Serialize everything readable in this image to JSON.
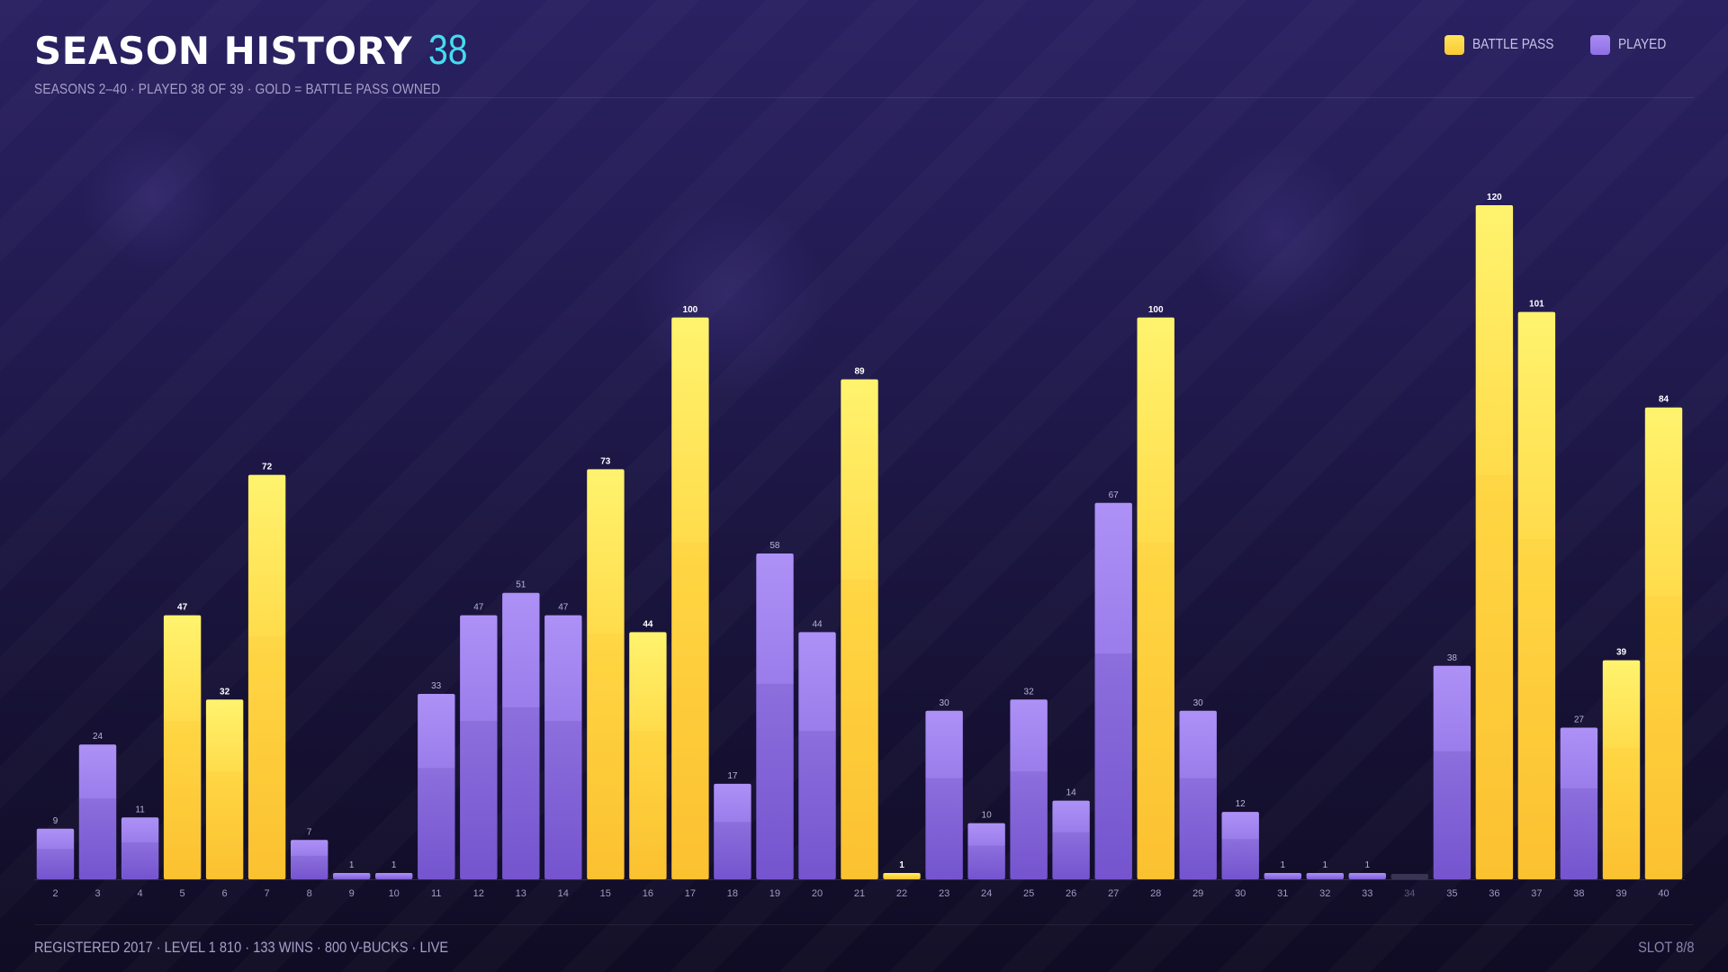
{
  "header": {
    "title": "SEASON HISTORY",
    "count": "38",
    "subtitle": "SEASONS 2–40  ·  PLAYED 38 OF 39  ·  GOLD = BATTLE PASS OWNED"
  },
  "legend": {
    "items": [
      {
        "label": "BATTLE PASS",
        "color": "#f9c934"
      },
      {
        "label": "PLAYED",
        "color": "#8f6fe6"
      }
    ]
  },
  "footer": {
    "left": "REGISTERED 2017  ·  LEVEL 1 810  ·  133 WINS  ·  800 V-BUCKS  ·  LIVE",
    "right": "SLOT 8/8"
  },
  "chart_data": {
    "type": "bar",
    "title": "SEASON HISTORY",
    "xlabel": "",
    "ylabel": "",
    "ylim": [
      0,
      120
    ],
    "grid": false,
    "legend_position": "top-right",
    "colors": {
      "battle_pass": "#f9c934",
      "played": "#8f6fe6",
      "not_played": "#3a3454"
    },
    "categories": [
      "2",
      "3",
      "4",
      "5",
      "6",
      "7",
      "8",
      "9",
      "10",
      "11",
      "12",
      "13",
      "14",
      "15",
      "16",
      "17",
      "18",
      "19",
      "20",
      "21",
      "22",
      "23",
      "24",
      "25",
      "26",
      "27",
      "28",
      "29",
      "30",
      "31",
      "32",
      "33",
      "34",
      "35",
      "36",
      "37",
      "38",
      "39",
      "40"
    ],
    "values": [
      9,
      24,
      11,
      47,
      32,
      72,
      7,
      1,
      1,
      33,
      47,
      51,
      47,
      73,
      44,
      100,
      17,
      58,
      44,
      89,
      1,
      30,
      10,
      32,
      14,
      67,
      100,
      30,
      12,
      1,
      1,
      1,
      0,
      38,
      120,
      101,
      27,
      39,
      84
    ],
    "battle_pass": [
      false,
      false,
      false,
      true,
      true,
      true,
      false,
      false,
      false,
      false,
      false,
      false,
      false,
      true,
      true,
      true,
      false,
      false,
      false,
      true,
      true,
      false,
      false,
      false,
      false,
      false,
      true,
      false,
      false,
      false,
      false,
      false,
      false,
      false,
      true,
      true,
      false,
      true,
      true
    ],
    "played": [
      true,
      true,
      true,
      true,
      true,
      true,
      true,
      true,
      true,
      true,
      true,
      true,
      true,
      true,
      true,
      true,
      true,
      true,
      true,
      true,
      true,
      true,
      true,
      true,
      true,
      true,
      true,
      true,
      true,
      true,
      true,
      true,
      false,
      true,
      true,
      true,
      true,
      true,
      true
    ],
    "data_labels": [
      "9",
      "24",
      "11",
      "47",
      "32",
      "72",
      "7",
      "1",
      "1",
      "33",
      "47",
      "51",
      "47",
      "73",
      "44",
      "100",
      "17",
      "58",
      "44",
      "89",
      "1",
      "30",
      "10",
      "32",
      "14",
      "67",
      "100",
      "30",
      "12",
      "1",
      "1",
      "1",
      "",
      "38",
      "120",
      "101",
      "27",
      "39",
      "84"
    ]
  }
}
